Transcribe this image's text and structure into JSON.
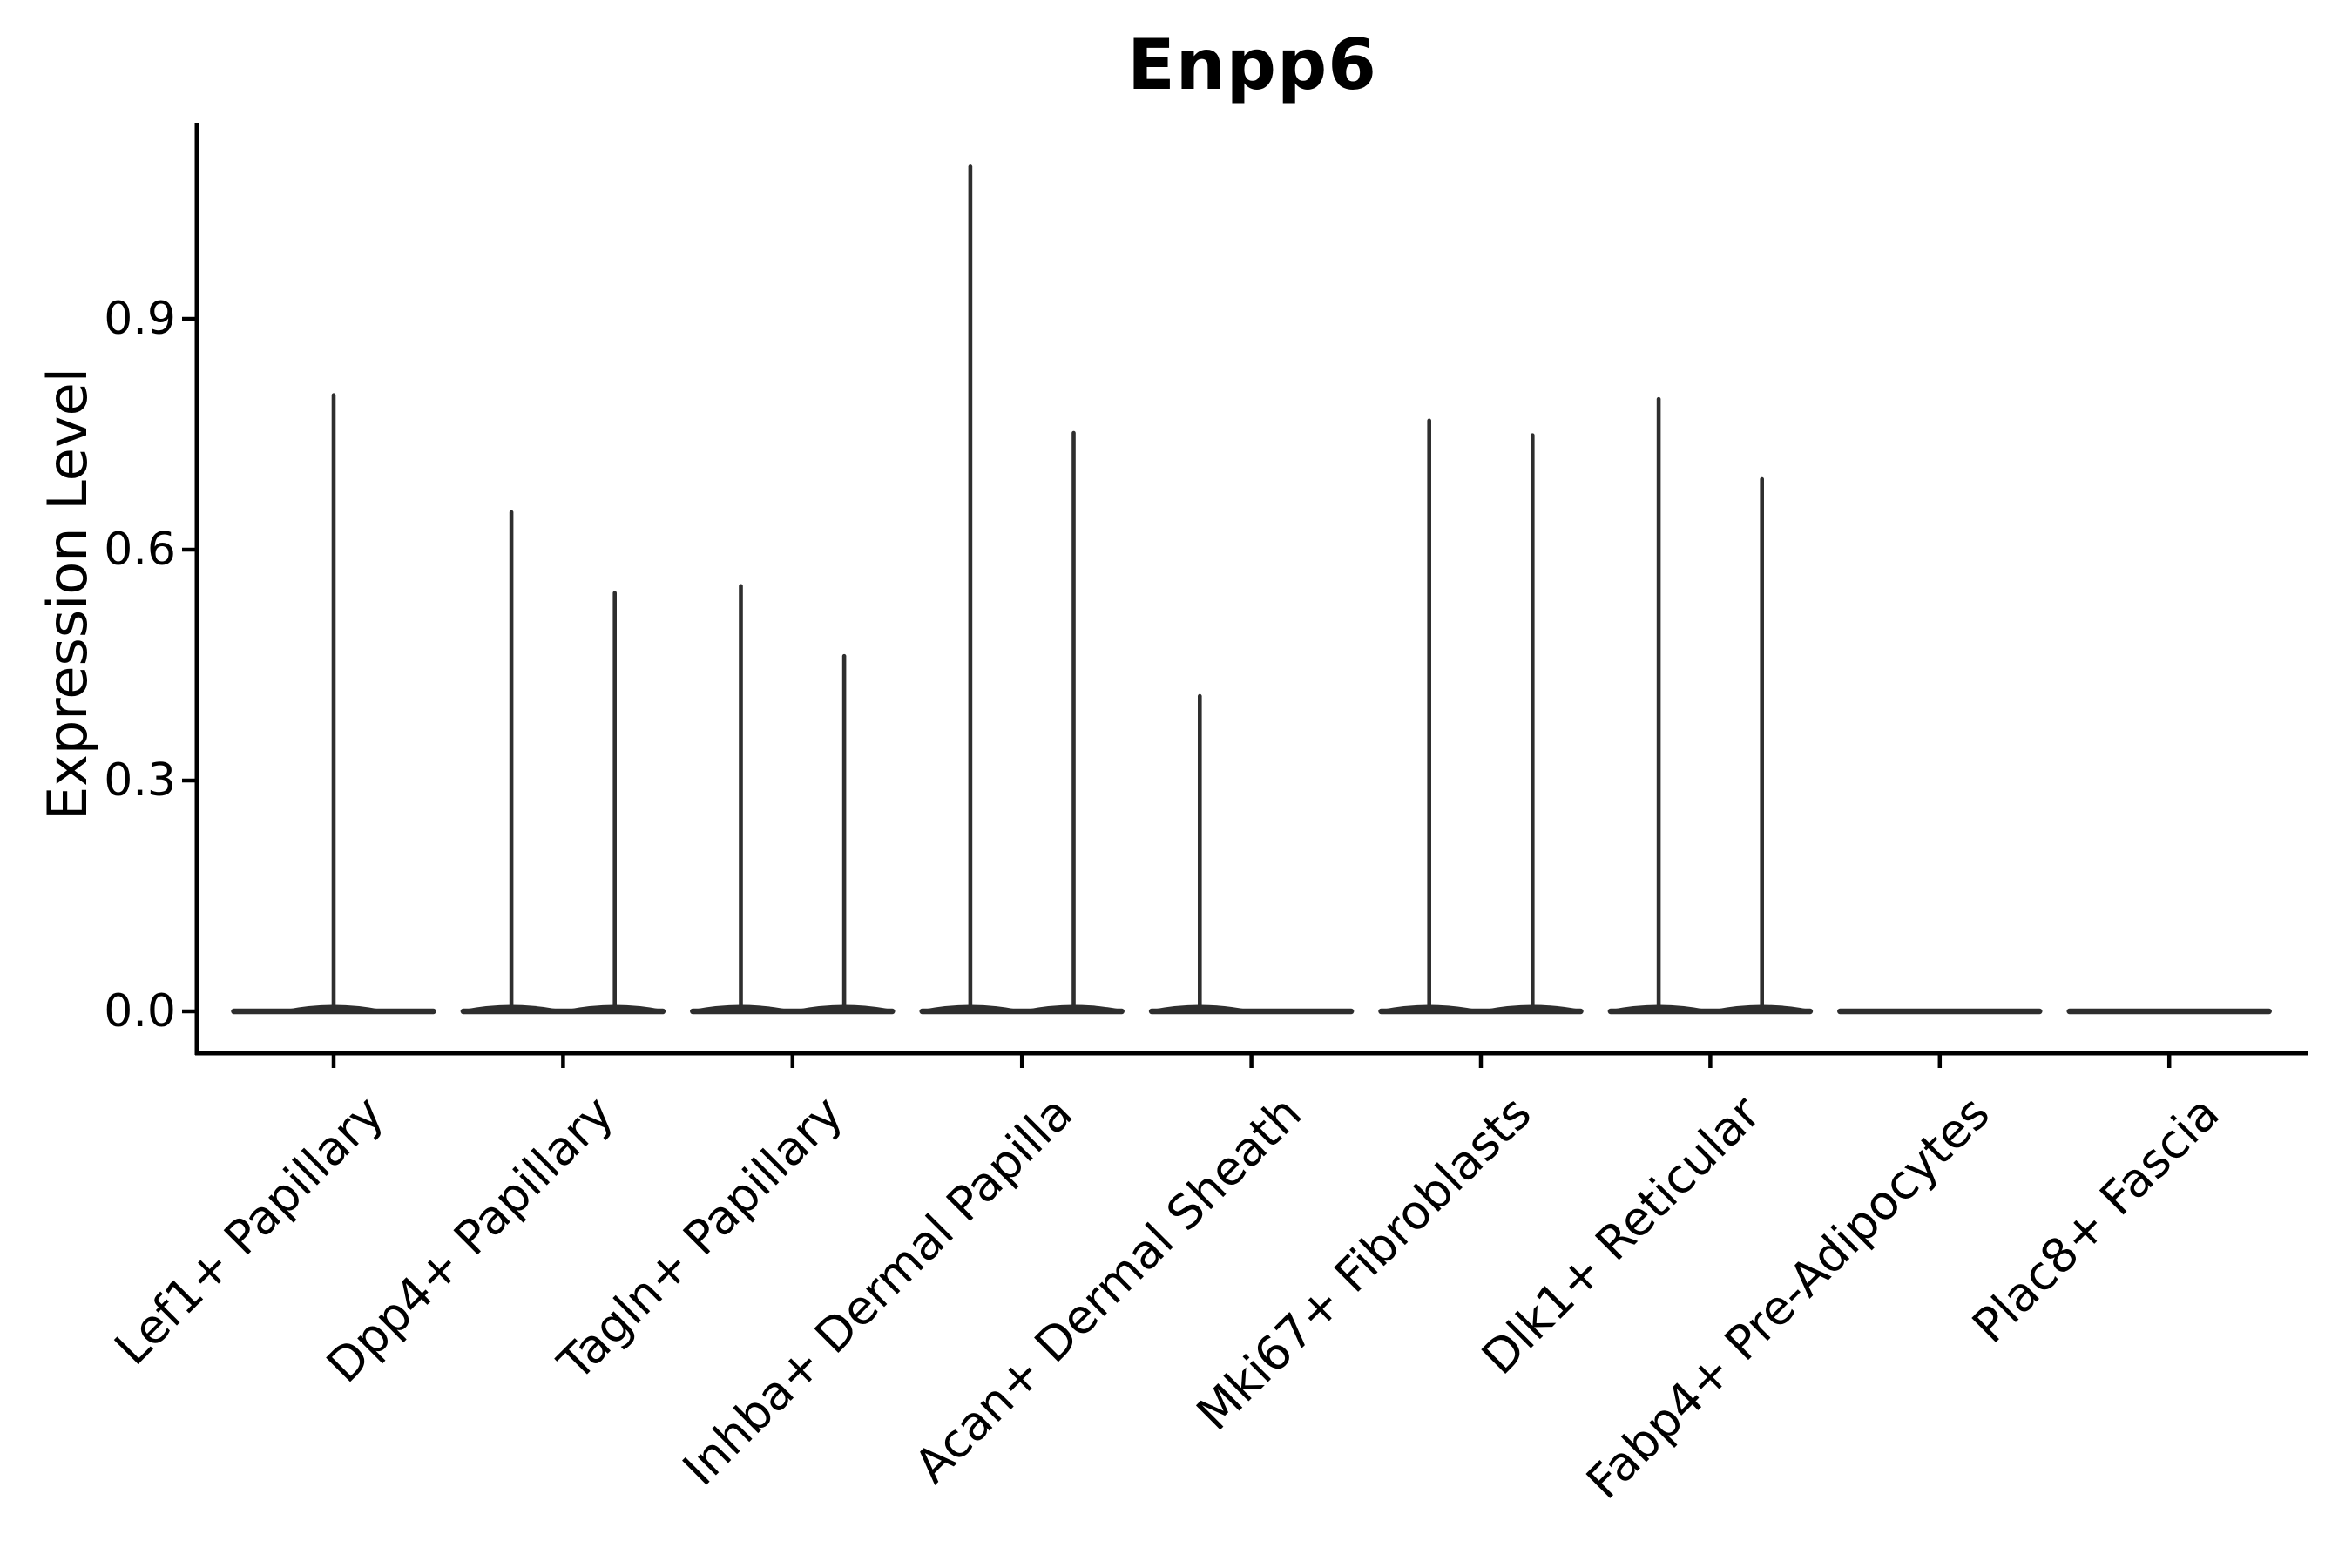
{
  "figure": {
    "background_color": "#ffffff",
    "axis_color": "#000000",
    "violin_color": "#2e2e2e"
  },
  "chart_data": {
    "type": "violin",
    "title": "Enpp6",
    "xlabel": "",
    "ylabel": "Expression Level",
    "ylim": [
      -0.02,
      1.16
    ],
    "grid": false,
    "legend": "none",
    "y_ticks": [
      {
        "label": "0.0",
        "value": 0.0
      },
      {
        "label": "0.3",
        "value": 0.3
      },
      {
        "label": "0.6",
        "value": 0.6
      },
      {
        "label": "0.9",
        "value": 0.9
      }
    ],
    "violins": [
      {
        "category": "Lef1+ Papillary",
        "spikes": [
          {
            "position": "center",
            "value": 0.803
          }
        ]
      },
      {
        "category": "Dpp4+ Papillary",
        "spikes": [
          {
            "position": "left",
            "value": 0.651
          },
          {
            "position": "right",
            "value": 0.546
          }
        ]
      },
      {
        "category": "Tagln+ Papillary",
        "spikes": [
          {
            "position": "left",
            "value": 0.555
          },
          {
            "position": "right",
            "value": 0.464
          }
        ]
      },
      {
        "category": "Inhba+ Dermal Papilla",
        "spikes": [
          {
            "position": "left",
            "value": 1.101
          },
          {
            "position": "right",
            "value": 0.754
          }
        ]
      },
      {
        "category": "Acan+ Dermal Sheath",
        "spikes": [
          {
            "position": "left",
            "value": 0.412
          }
        ]
      },
      {
        "category": "Mki67+ Fibroblasts",
        "spikes": [
          {
            "position": "left",
            "value": 0.77
          },
          {
            "position": "right",
            "value": 0.751
          }
        ]
      },
      {
        "category": "Dlk1+ Reticular",
        "spikes": [
          {
            "position": "left",
            "value": 0.798
          },
          {
            "position": "right",
            "value": 0.694
          }
        ]
      },
      {
        "category": "Fabp4+ Pre-Adipocytes",
        "spikes": []
      },
      {
        "category": "Plac8+ Fascia",
        "spikes": []
      }
    ],
    "description": "Violin plot of gene expression; each category violin is collapsed flat at 0 with thin density spikes for rare expressing cells."
  }
}
